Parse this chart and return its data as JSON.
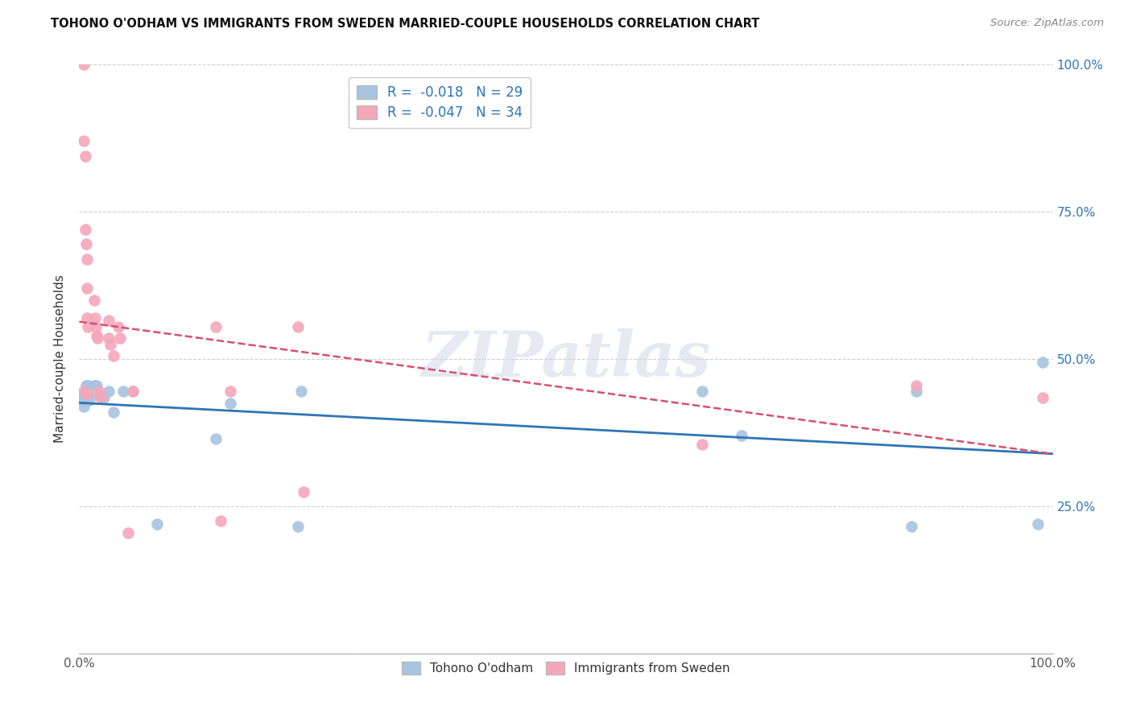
{
  "title": "TOHONO O'ODHAM VS IMMIGRANTS FROM SWEDEN MARRIED-COUPLE HOUSEHOLDS CORRELATION CHART",
  "source": "Source: ZipAtlas.com",
  "ylabel": "Married-couple Households",
  "watermark": "ZIPatlas",
  "blue_R": -0.018,
  "blue_N": 29,
  "pink_R": -0.047,
  "pink_N": 34,
  "blue_color": "#a8c4e0",
  "pink_color": "#f4a7b9",
  "blue_line_color": "#2e75b6",
  "pink_line_color": "#d94f6e",
  "xlim": [
    0.0,
    1.0
  ],
  "ylim": [
    0.0,
    1.0
  ],
  "blue_x": [
    0.005,
    0.005,
    0.005,
    0.006,
    0.007,
    0.008,
    0.008,
    0.009,
    0.01,
    0.015,
    0.016,
    0.018,
    0.02,
    0.025,
    0.03,
    0.035,
    0.045,
    0.055,
    0.08,
    0.14,
    0.155,
    0.225,
    0.228,
    0.64,
    0.68,
    0.855,
    0.86,
    0.985,
    0.99
  ],
  "blue_y": [
    0.44,
    0.43,
    0.42,
    0.44,
    0.455,
    0.455,
    0.44,
    0.455,
    0.43,
    0.455,
    0.455,
    0.455,
    0.44,
    0.435,
    0.445,
    0.41,
    0.445,
    0.445,
    0.22,
    0.365,
    0.425,
    0.215,
    0.445,
    0.445,
    0.37,
    0.215,
    0.445,
    0.22,
    0.495
  ],
  "pink_x": [
    0.005,
    0.005,
    0.005,
    0.006,
    0.006,
    0.007,
    0.008,
    0.008,
    0.008,
    0.009,
    0.009,
    0.015,
    0.016,
    0.017,
    0.018,
    0.019,
    0.02,
    0.022,
    0.03,
    0.03,
    0.032,
    0.035,
    0.04,
    0.042,
    0.05,
    0.055,
    0.14,
    0.145,
    0.155,
    0.225,
    0.23,
    0.64,
    0.86,
    0.99
  ],
  "pink_y": [
    1.0,
    0.87,
    0.445,
    0.845,
    0.72,
    0.695,
    0.67,
    0.62,
    0.57,
    0.555,
    0.44,
    0.6,
    0.57,
    0.555,
    0.54,
    0.535,
    0.445,
    0.435,
    0.565,
    0.535,
    0.525,
    0.505,
    0.555,
    0.535,
    0.205,
    0.445,
    0.555,
    0.225,
    0.445,
    0.555,
    0.275,
    0.355,
    0.455,
    0.435
  ],
  "background_color": "#ffffff",
  "grid_color": "#d0d0d0"
}
